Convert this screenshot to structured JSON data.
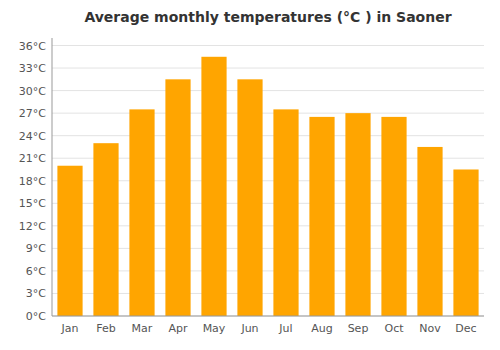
{
  "chart_data": {
    "type": "bar",
    "title": "Average monthly temperatures (°C ) in Saoner",
    "categories": [
      "Jan",
      "Feb",
      "Mar",
      "Apr",
      "May",
      "Jun",
      "Jul",
      "Aug",
      "Sep",
      "Oct",
      "Nov",
      "Dec"
    ],
    "values": [
      20,
      23,
      27.5,
      31.5,
      34.5,
      31.5,
      27.5,
      26.5,
      27,
      26.5,
      22.5,
      19.5
    ],
    "color": "#FFA500",
    "ylim": [
      0,
      37
    ],
    "yticks": [
      {
        "value": 0,
        "label": "0°C"
      },
      {
        "value": 3,
        "label": "3°C"
      },
      {
        "value": 6,
        "label": "6°C"
      },
      {
        "value": 9,
        "label": "9°C"
      },
      {
        "value": 12,
        "label": "12°C"
      },
      {
        "value": 15,
        "label": "15°C"
      },
      {
        "value": 18,
        "label": "18°C"
      },
      {
        "value": 21,
        "label": "21°C"
      },
      {
        "value": 24,
        "label": "24°C"
      },
      {
        "value": 27,
        "label": "27°C"
      },
      {
        "value": 30,
        "label": "30°C"
      },
      {
        "value": 33,
        "label": "33°C"
      },
      {
        "value": 36,
        "label": "36°C"
      }
    ],
    "grid": true
  }
}
